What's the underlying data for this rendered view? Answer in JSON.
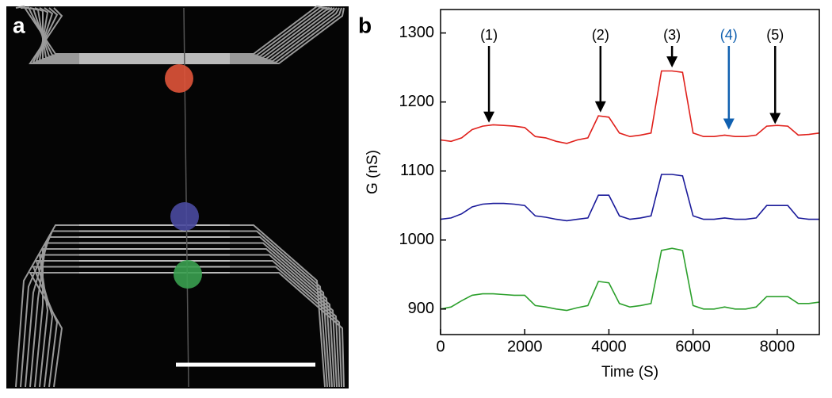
{
  "image_panel": {
    "label": "a"
  },
  "chart_data": {
    "type": "line",
    "panel_label": "b",
    "x_label": "Time (S)",
    "y_label": "G (nS)",
    "x": [
      0,
      250,
      500,
      750,
      1000,
      1250,
      1500,
      1750,
      2000,
      2250,
      2500,
      2750,
      3000,
      3250,
      3500,
      3750,
      4000,
      4250,
      4500,
      4750,
      5000,
      5250,
      5500,
      5750,
      6000,
      6250,
      6500,
      6750,
      7000,
      7250,
      7500,
      7750,
      8000,
      8250,
      8500,
      8750,
      9000
    ],
    "series": [
      {
        "color": "#e0201b",
        "values": [
          1145,
          1143,
          1148,
          1160,
          1165,
          1167,
          1166,
          1165,
          1163,
          1150,
          1148,
          1143,
          1140,
          1145,
          1148,
          1180,
          1178,
          1155,
          1150,
          1152,
          1155,
          1245,
          1245,
          1243,
          1155,
          1150,
          1150,
          1152,
          1150,
          1150,
          1152,
          1165,
          1166,
          1165,
          1152,
          1153,
          1155
        ]
      },
      {
        "color": "#1a1a9a",
        "values": [
          1030,
          1032,
          1038,
          1048,
          1052,
          1053,
          1053,
          1052,
          1050,
          1035,
          1033,
          1030,
          1028,
          1030,
          1032,
          1065,
          1065,
          1035,
          1030,
          1032,
          1035,
          1095,
          1095,
          1093,
          1035,
          1030,
          1030,
          1032,
          1030,
          1030,
          1032,
          1050,
          1050,
          1050,
          1032,
          1030,
          1030
        ]
      },
      {
        "color": "#2ca02c",
        "values": [
          900,
          903,
          912,
          920,
          922,
          922,
          921,
          920,
          920,
          905,
          903,
          900,
          898,
          902,
          905,
          940,
          938,
          908,
          903,
          905,
          908,
          985,
          988,
          985,
          905,
          900,
          900,
          903,
          900,
          900,
          903,
          918,
          918,
          918,
          908,
          908,
          910
        ]
      }
    ],
    "annotations": [
      {
        "text": "(1)",
        "x": 1150,
        "y": 1170,
        "color": "#000000"
      },
      {
        "text": "(2)",
        "x": 3800,
        "y": 1185,
        "color": "#000000"
      },
      {
        "text": "(3)",
        "x": 5500,
        "y": 1250,
        "color": "#000000"
      },
      {
        "text": "(4)",
        "x": 6850,
        "y": 1160,
        "color": "#1060b0"
      },
      {
        "text": "(5)",
        "x": 7950,
        "y": 1168,
        "color": "#000000"
      }
    ],
    "xlim": [
      0,
      9000
    ],
    "xticks": [
      0,
      2000,
      4000,
      6000,
      8000
    ],
    "ylim": [
      863,
      1334
    ],
    "yticks": [
      900,
      1000,
      1100,
      1200,
      1300
    ]
  }
}
